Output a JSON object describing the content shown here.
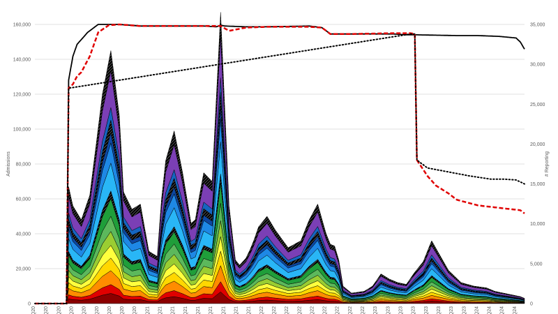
{
  "chart_data": {
    "type": "area",
    "title": "",
    "ylabel": "Admissions",
    "y2label": "# Reporting",
    "ylim": [
      0,
      160000
    ],
    "y2lim": [
      0,
      35000
    ],
    "y_ticks": [
      "0",
      "20,000",
      "40,000",
      "60,000",
      "80,000",
      "100,000",
      "120,000",
      "140,000",
      "160,000"
    ],
    "y2_ticks": [
      "0",
      "5,000",
      "10,000",
      "15,000",
      "20,000",
      "25,000",
      "30,000",
      "35,000"
    ],
    "grid": true,
    "x_start_week": 0,
    "x_end_week": 232,
    "x_ticks_weeks": [
      0,
      6,
      12,
      18,
      24,
      30,
      36,
      42,
      48,
      54,
      60,
      66,
      72,
      78,
      84,
      90,
      96,
      102,
      108,
      114,
      120,
      126,
      132,
      138,
      144,
      150,
      156,
      162,
      168,
      174,
      180,
      186,
      192,
      198,
      204,
      210,
      216,
      222,
      228
    ],
    "x_tick_labels": [
      "Q20",
      "Q20",
      "Q20",
      "Q20",
      "Q20",
      "Q20",
      "Q20",
      "Q20",
      "Q20",
      "Q21",
      "Q21",
      "Q21",
      "Q21",
      "Q21",
      "Q21",
      "Q21",
      "Q21",
      "Q21",
      "Q22",
      "Q22",
      "Q22",
      "Q22",
      "Q22",
      "Q22",
      "Q22",
      "Q22",
      "Q22",
      "Q23",
      "Q23",
      "Q23",
      "Q23",
      "Q23",
      "Q23",
      "Q23",
      "Q23",
      "Q24",
      "Q24",
      "Q24",
      "Q24"
    ],
    "total_anchors_week": [
      0,
      15,
      16,
      18,
      22,
      26,
      32,
      36,
      40,
      42,
      46,
      50,
      54,
      58,
      60,
      62,
      66,
      70,
      74,
      76,
      78,
      80,
      84,
      88,
      92,
      95,
      97,
      100,
      102,
      104,
      106,
      110,
      114,
      120,
      126,
      130,
      134,
      138,
      140,
      142,
      144,
      146,
      150,
      156,
      160,
      164,
      168,
      172,
      176,
      180,
      184,
      188,
      196,
      202,
      208,
      214,
      218,
      222,
      226,
      230,
      232
    ],
    "total_anchors_value": [
      0,
      0,
      67000,
      56000,
      48000,
      62000,
      120000,
      145000,
      108000,
      64000,
      54000,
      57000,
      30000,
      27000,
      60000,
      82000,
      99000,
      75000,
      46000,
      48000,
      62000,
      75000,
      70000,
      167000,
      56000,
      25000,
      22000,
      26000,
      31000,
      37000,
      44000,
      50000,
      42000,
      32000,
      36000,
      48000,
      57000,
      40000,
      34000,
      33000,
      25000,
      10000,
      6000,
      7000,
      10000,
      17000,
      14000,
      12000,
      11000,
      18000,
      24000,
      36000,
      19000,
      12000,
      10000,
      9000,
      7000,
      6000,
      5000,
      4000,
      3000
    ],
    "series": [
      {
        "name": "",
        "color": "#8b0000",
        "share": 0.04
      },
      {
        "name": "",
        "color": "#e00000",
        "share": 0.035
      },
      {
        "name": "",
        "color": "#ff8c00",
        "share": 0.055
      },
      {
        "name": "",
        "color": "#ffd700",
        "share": 0.05
      },
      {
        "name": "",
        "color": "#ffff3d",
        "share": 0.05
      },
      {
        "name": "",
        "color": "#9acd32",
        "share": 0.055
      },
      {
        "name": "",
        "color": "#5cb85c",
        "share": 0.06
      },
      {
        "name": "",
        "color": "#1f9e3a",
        "share": 0.07
      },
      {
        "name": "",
        "color": "#000000",
        "share": 0.03
      },
      {
        "name": "",
        "color": "#29b6f6",
        "share": 0.11
      },
      {
        "name": "",
        "color": "#1e88e5",
        "share": 0.08
      },
      {
        "name": "",
        "color": "#0d47a1",
        "share": 0.04
      },
      {
        "name": "",
        "color": "#000000",
        "share": 0.05
      },
      {
        "name": "",
        "color": "#1565c0",
        "share": 0.05
      },
      {
        "name": "",
        "color": "#7b3fb5",
        "share": 0.145
      },
      {
        "name": "",
        "color": "#595959",
        "share": 0.08
      }
    ],
    "lines": [
      {
        "name": "",
        "color": "#000000",
        "style": "solid",
        "axis": "y2",
        "anchors_week": [
          0,
          15,
          16,
          18,
          20,
          25,
          30,
          40,
          50,
          60,
          70,
          80,
          86,
          88,
          90,
          100,
          110,
          130,
          136,
          140,
          150,
          170,
          176,
          180,
          200,
          210,
          220,
          228,
          230,
          232
        ],
        "anchors_value": [
          0,
          0,
          28000,
          31000,
          32500,
          34000,
          35000,
          35000,
          34800,
          34800,
          34800,
          34800,
          34700,
          34900,
          34800,
          34700,
          34700,
          34800,
          34600,
          33800,
          33800,
          33800,
          33700,
          33700,
          33600,
          33600,
          33500,
          33300,
          32800,
          31900
        ]
      },
      {
        "name": "",
        "color": "#e00000",
        "style": "dashed",
        "axis": "y2",
        "anchors_week": [
          0,
          15,
          16,
          18,
          20,
          22,
          26,
          30,
          35,
          40,
          50,
          60,
          70,
          80,
          88,
          90,
          92,
          100,
          110,
          130,
          136,
          140,
          150,
          170,
          178,
          180,
          181,
          186,
          190,
          196,
          200,
          210,
          220,
          230,
          232
        ],
        "anchors_value": [
          0,
          0,
          27000,
          27500,
          28500,
          29000,
          31000,
          34000,
          34900,
          35000,
          34800,
          34800,
          34800,
          34800,
          34800,
          34500,
          34200,
          34600,
          34700,
          34700,
          34600,
          33800,
          33800,
          33900,
          33900,
          33800,
          18000,
          16000,
          14800,
          13800,
          13000,
          12300,
          12000,
          11700,
          11300
        ]
      },
      {
        "name": "",
        "color": "#000000",
        "style": "dotted",
        "axis": "y2",
        "anchors_week": [
          0,
          15,
          16,
          178,
          180,
          181,
          186,
          196,
          206,
          216,
          222,
          228,
          232
        ],
        "anchors_value": [
          0,
          0,
          27000,
          33800,
          33800,
          18000,
          17000,
          16500,
          16000,
          15600,
          15600,
          15500,
          15000
        ]
      }
    ]
  }
}
